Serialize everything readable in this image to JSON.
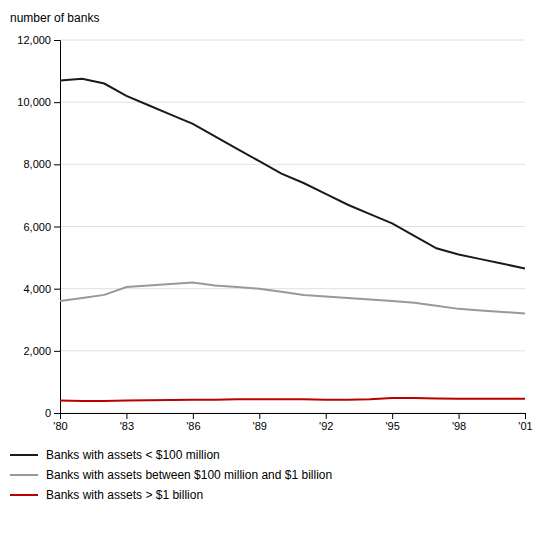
{
  "chart_data": {
    "type": "line",
    "y_label": "number of banks",
    "x": [
      1980,
      1981,
      1982,
      1983,
      1984,
      1985,
      1986,
      1987,
      1988,
      1989,
      1990,
      1991,
      1992,
      1993,
      1994,
      1995,
      1996,
      1997,
      1998,
      1999,
      2000,
      2001
    ],
    "xlim": [
      1980,
      2001
    ],
    "xticks": [
      {
        "value": 1980,
        "label": "'80"
      },
      {
        "value": 1983,
        "label": "'83"
      },
      {
        "value": 1986,
        "label": "'86"
      },
      {
        "value": 1989,
        "label": "'89"
      },
      {
        "value": 1992,
        "label": "'92"
      },
      {
        "value": 1995,
        "label": "'95"
      },
      {
        "value": 1998,
        "label": "'98"
      },
      {
        "value": 2001,
        "label": "'01"
      }
    ],
    "ylim": [
      0,
      12000
    ],
    "yticks": [
      0,
      {
        "value": 2000,
        "label": "2,000"
      },
      {
        "value": 4000,
        "label": "4,000"
      },
      {
        "value": 6000,
        "label": "6,000"
      },
      {
        "value": 8000,
        "label": "8,000"
      },
      {
        "value": 10000,
        "label": "10,000"
      },
      {
        "value": 12000,
        "label": "12,000"
      }
    ],
    "grid": true,
    "legend": "bottom",
    "series": [
      {
        "name": "Banks with assets < $100 million",
        "color": "#1a1a1a",
        "values": [
          10700,
          10750,
          10600,
          10200,
          9900,
          9600,
          9300,
          8900,
          8500,
          8100,
          7700,
          7400,
          7050,
          6700,
          6400,
          6100,
          5700,
          5300,
          5100,
          4950,
          4800,
          4650
        ]
      },
      {
        "name": "Banks with assets between $100 million and $1 billion",
        "color": "#999999",
        "values": [
          3600,
          3700,
          3800,
          4050,
          4100,
          4150,
          4200,
          4100,
          4050,
          4000,
          3900,
          3800,
          3750,
          3700,
          3650,
          3600,
          3550,
          3450,
          3350,
          3300,
          3250,
          3200
        ]
      },
      {
        "name": "Banks with assets > $1 billion",
        "color": "#bb0000",
        "values": [
          400,
          390,
          390,
          400,
          410,
          420,
          430,
          430,
          440,
          440,
          440,
          440,
          430,
          430,
          440,
          480,
          480,
          470,
          460,
          460,
          460,
          460
        ]
      }
    ]
  }
}
